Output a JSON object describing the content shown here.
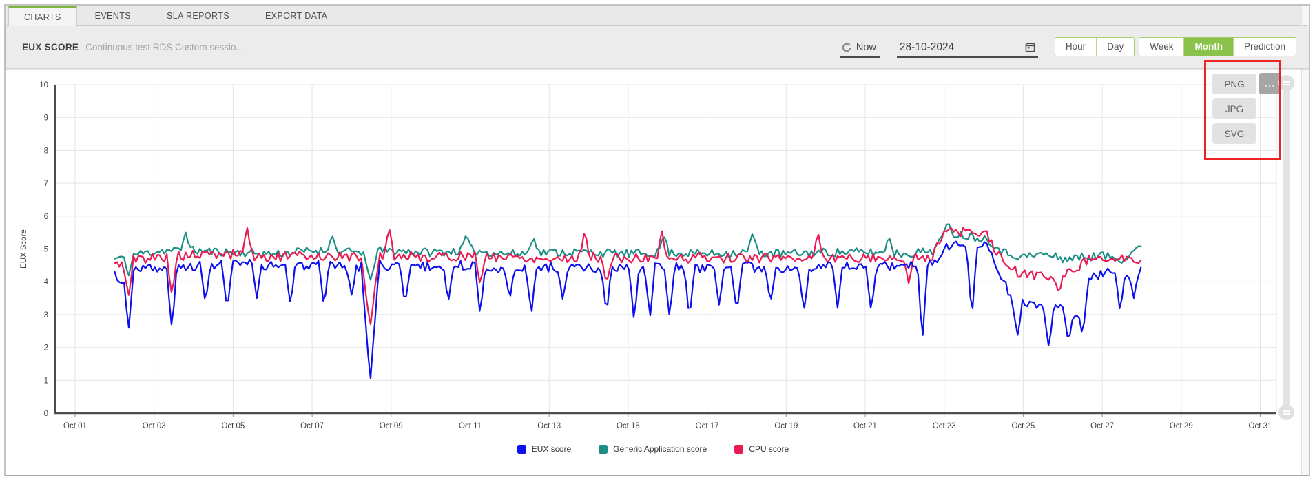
{
  "tabs": {
    "items": [
      {
        "label": "CHARTS",
        "active": true
      },
      {
        "label": "EVENTS",
        "active": false
      },
      {
        "label": "SLA REPORTS",
        "active": false
      },
      {
        "label": "EXPORT DATA",
        "active": false
      }
    ]
  },
  "header": {
    "title": "EUX SCORE",
    "subtitle": "Continuous test RDS Custom sessio...",
    "now_label": "Now",
    "date_value": "28-10-2024",
    "range_buttons": [
      {
        "label": "Hour",
        "active": false
      },
      {
        "label": "Day",
        "active": false
      },
      {
        "label": "Week",
        "active": false
      },
      {
        "label": "Month",
        "active": true
      },
      {
        "label": "Prediction",
        "active": false
      }
    ]
  },
  "export_menu": {
    "options": [
      "PNG",
      "JPG",
      "SVG"
    ],
    "more_label": "..."
  },
  "colors": {
    "accent_green": "#8bc34a",
    "tab_active_green": "#7cb43e",
    "annotation_red": "#ee2326",
    "axis": "#4d4d4d",
    "grid": "#e4e4e4",
    "tick_text": "#3f3f3f"
  },
  "chart_data": {
    "type": "line",
    "title": "",
    "xlabel": "",
    "ylabel": "EUX Score",
    "ylim": [
      0,
      10
    ],
    "grid": true,
    "legend_position": "bottom",
    "y_ticks": [
      0,
      1,
      2,
      3,
      4,
      5,
      6,
      7,
      8,
      9,
      10
    ],
    "x_ticks": [
      {
        "label": "Oct 01",
        "day": 1
      },
      {
        "label": "Oct 03",
        "day": 3
      },
      {
        "label": "Oct 05",
        "day": 5
      },
      {
        "label": "Oct 07",
        "day": 7
      },
      {
        "label": "Oct 09",
        "day": 9
      },
      {
        "label": "Oct 11",
        "day": 11
      },
      {
        "label": "Oct 13",
        "day": 13
      },
      {
        "label": "Oct 15",
        "day": 15
      },
      {
        "label": "Oct 17",
        "day": 17
      },
      {
        "label": "Oct 19",
        "day": 19
      },
      {
        "label": "Oct 21",
        "day": 21
      },
      {
        "label": "Oct 23",
        "day": 23
      },
      {
        "label": "Oct 25",
        "day": 25
      },
      {
        "label": "Oct 27",
        "day": 27
      },
      {
        "label": "Oct 29",
        "day": 29
      },
      {
        "label": "Oct 31",
        "day": 31
      }
    ],
    "x_domain_days": [
      1,
      31.5
    ],
    "data_range_days": [
      2.0,
      28.0
    ],
    "sample_step_days": 0.06,
    "draw_order": [
      1,
      2,
      0
    ],
    "series": [
      {
        "name": "EUX score",
        "color": "#0c10ee",
        "noise": 0.15,
        "seed": 3,
        "base": [
          [
            2,
            4.25
          ],
          [
            2.6,
            4.45
          ],
          [
            3.2,
            4.35
          ],
          [
            4,
            4.5
          ],
          [
            5,
            4.55
          ],
          [
            6,
            4.5
          ],
          [
            7,
            4.5
          ],
          [
            8,
            4.45
          ],
          [
            8.8,
            4.5
          ],
          [
            10,
            4.45
          ],
          [
            11,
            4.5
          ],
          [
            12,
            4.4
          ],
          [
            13,
            4.45
          ],
          [
            14,
            4.4
          ],
          [
            15,
            4.4
          ],
          [
            16,
            4.45
          ],
          [
            17,
            4.4
          ],
          [
            18,
            4.45
          ],
          [
            19,
            4.4
          ],
          [
            20,
            4.45
          ],
          [
            21,
            4.45
          ],
          [
            22,
            4.5
          ],
          [
            22.7,
            4.55
          ],
          [
            23.05,
            5.1
          ],
          [
            23.6,
            5.2
          ],
          [
            24.1,
            5.15
          ],
          [
            24.45,
            4.2
          ],
          [
            24.7,
            3.5
          ],
          [
            25.1,
            3.3
          ],
          [
            25.6,
            3.2
          ],
          [
            26,
            3.25
          ],
          [
            26.35,
            3.05
          ],
          [
            26.7,
            4.15
          ],
          [
            27.1,
            4.3
          ],
          [
            27.5,
            4.25
          ],
          [
            28,
            4.4
          ]
        ],
        "events": [
          [
            2.15,
            3.9
          ],
          [
            2.35,
            2.45
          ],
          [
            3.45,
            2.55
          ],
          [
            4.3,
            3.3
          ],
          [
            4.85,
            3.1
          ],
          [
            5.6,
            3.5
          ],
          [
            6.45,
            3.3
          ],
          [
            7.3,
            3.2
          ],
          [
            8,
            3.6
          ],
          [
            8.47,
            0.9,
            0.22
          ],
          [
            9.35,
            3.3
          ],
          [
            10.45,
            3.4
          ],
          [
            11.25,
            3.0
          ],
          [
            12,
            3.4
          ],
          [
            12.55,
            3.0
          ],
          [
            13.35,
            3.4
          ],
          [
            14.45,
            3.0
          ],
          [
            15.15,
            2.8
          ],
          [
            15.55,
            2.85
          ],
          [
            16.05,
            2.9
          ],
          [
            16.55,
            2.85
          ],
          [
            17.3,
            3.3
          ],
          [
            17.75,
            3.0
          ],
          [
            18.6,
            3.3
          ],
          [
            19.45,
            3.1
          ],
          [
            20.3,
            3.2
          ],
          [
            21.15,
            3.1
          ],
          [
            22.45,
            2.2
          ],
          [
            23.7,
            2.8
          ],
          [
            24.85,
            2.3
          ],
          [
            25.65,
            1.95
          ],
          [
            26.15,
            2.1
          ],
          [
            26.5,
            2.3
          ],
          [
            27.45,
            3.1
          ],
          [
            27.8,
            3.5
          ]
        ]
      },
      {
        "name": "Generic Application score",
        "color": "#1d8e85",
        "noise": 0.13,
        "seed": 11,
        "base": [
          [
            2,
            4.7
          ],
          [
            2.6,
            4.85
          ],
          [
            3.2,
            4.95
          ],
          [
            4,
            4.95
          ],
          [
            5,
            4.9
          ],
          [
            6,
            4.85
          ],
          [
            7,
            4.95
          ],
          [
            8,
            4.9
          ],
          [
            8.8,
            4.95
          ],
          [
            10,
            4.9
          ],
          [
            11,
            4.95
          ],
          [
            12,
            4.85
          ],
          [
            13,
            4.9
          ],
          [
            14,
            4.9
          ],
          [
            15,
            4.85
          ],
          [
            16,
            4.9
          ],
          [
            17,
            4.85
          ],
          [
            18,
            4.9
          ],
          [
            19,
            4.85
          ],
          [
            20,
            4.9
          ],
          [
            21,
            4.9
          ],
          [
            22,
            4.85
          ],
          [
            22.7,
            4.95
          ],
          [
            23.05,
            5.5
          ],
          [
            23.6,
            5.4
          ],
          [
            24.1,
            5.3
          ],
          [
            24.5,
            4.9
          ],
          [
            25,
            4.75
          ],
          [
            25.5,
            4.85
          ],
          [
            26,
            4.7
          ],
          [
            26.5,
            4.75
          ],
          [
            27,
            4.8
          ],
          [
            27.5,
            4.7
          ],
          [
            28,
            5.05
          ]
        ],
        "events": [
          [
            2.35,
            4.15
          ],
          [
            3.8,
            5.5
          ],
          [
            7.5,
            5.45
          ],
          [
            8.47,
            4.0,
            0.18
          ],
          [
            10.9,
            5.45
          ],
          [
            12.6,
            5.4
          ],
          [
            15.9,
            5.45
          ],
          [
            18.15,
            5.5
          ],
          [
            21.6,
            5.4
          ],
          [
            23.1,
            5.8
          ],
          [
            27.9,
            5.1
          ]
        ]
      },
      {
        "name": "CPU score",
        "color": "#ea1a52",
        "noise": 0.15,
        "seed": 5,
        "base": [
          [
            2,
            4.5
          ],
          [
            2.6,
            4.7
          ],
          [
            3.2,
            4.75
          ],
          [
            4,
            4.8
          ],
          [
            5,
            4.85
          ],
          [
            6,
            4.75
          ],
          [
            7,
            4.8
          ],
          [
            8,
            4.75
          ],
          [
            8.8,
            4.8
          ],
          [
            10,
            4.75
          ],
          [
            11,
            4.8
          ],
          [
            12,
            4.75
          ],
          [
            13,
            4.7
          ],
          [
            14,
            4.75
          ],
          [
            15,
            4.7
          ],
          [
            16,
            4.7
          ],
          [
            17,
            4.75
          ],
          [
            18,
            4.7
          ],
          [
            19,
            4.75
          ],
          [
            20,
            4.7
          ],
          [
            21,
            4.75
          ],
          [
            22,
            4.7
          ],
          [
            22.7,
            4.8
          ],
          [
            23.05,
            5.55
          ],
          [
            23.6,
            5.5
          ],
          [
            24.1,
            5.4
          ],
          [
            24.5,
            4.55
          ],
          [
            24.9,
            4.25
          ],
          [
            25.3,
            4.2
          ],
          [
            25.8,
            4.15
          ],
          [
            26.2,
            4.3
          ],
          [
            26.6,
            4.65
          ],
          [
            27,
            4.8
          ],
          [
            27.4,
            4.7
          ],
          [
            27.8,
            4.6
          ],
          [
            28,
            4.5
          ]
        ],
        "events": [
          [
            2.35,
            3.5
          ],
          [
            3.45,
            3.6
          ],
          [
            5.35,
            5.7
          ],
          [
            8.47,
            2.6,
            0.22
          ],
          [
            8.95,
            5.65
          ],
          [
            11.25,
            3.9
          ],
          [
            13.9,
            5.6
          ],
          [
            14.45,
            3.9
          ],
          [
            15.85,
            5.6
          ],
          [
            19.8,
            5.55
          ],
          [
            22.1,
            3.95
          ],
          [
            23.15,
            5.65
          ],
          [
            25.9,
            3.65
          ]
        ]
      }
    ]
  }
}
